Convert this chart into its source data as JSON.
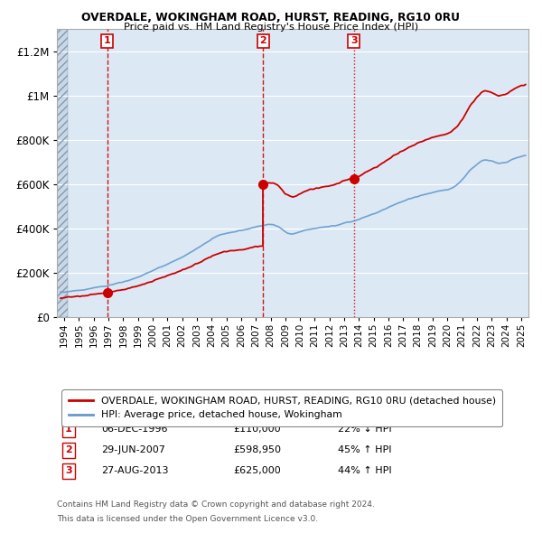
{
  "title1": "OVERDALE, WOKINGHAM ROAD, HURST, READING, RG10 0RU",
  "title2": "Price paid vs. HM Land Registry's House Price Index (HPI)",
  "background_color": "#ffffff",
  "plot_bg_color": "#dce9f5",
  "hatch_color": "#b0c4d8",
  "grid_color": "#ffffff",
  "sale_color": "#cc0000",
  "hpi_color": "#6699cc",
  "sale_dates": [
    1996.92,
    2007.49,
    2013.65
  ],
  "sale_prices": [
    110000,
    598950,
    625000
  ],
  "annotations": [
    {
      "num": 1,
      "date": "06-DEC-1996",
      "price": "£110,000",
      "pct": "22% ↓ HPI"
    },
    {
      "num": 2,
      "date": "29-JUN-2007",
      "price": "£598,950",
      "pct": "45% ↑ HPI"
    },
    {
      "num": 3,
      "date": "27-AUG-2013",
      "price": "£625,000",
      "pct": "44% ↑ HPI"
    }
  ],
  "legend_sale": "OVERDALE, WOKINGHAM ROAD, HURST, READING, RG10 0RU (detached house)",
  "legend_hpi": "HPI: Average price, detached house, Wokingham",
  "footer1": "Contains HM Land Registry data © Crown copyright and database right 2024.",
  "footer2": "This data is licensed under the Open Government Licence v3.0.",
  "ylim": [
    0,
    1300000
  ],
  "xlim_start": 1993.5,
  "xlim_end": 2025.5,
  "hatch_end": 1994.25
}
